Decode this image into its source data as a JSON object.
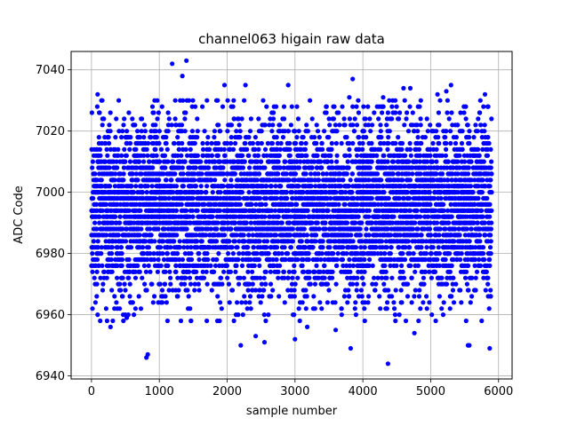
{
  "chart_data": {
    "type": "scatter",
    "title": "channel063 higain raw data",
    "xlabel": "sample number",
    "ylabel": "ADC Code",
    "xlim": [
      -300,
      6200
    ],
    "ylim": [
      6939,
      7046
    ],
    "x_ticks": [
      0,
      1000,
      2000,
      3000,
      4000,
      5000,
      6000
    ],
    "y_ticks": [
      6940,
      6960,
      6980,
      7000,
      7020,
      7040
    ],
    "grid": true,
    "marker_color": "#0000ff",
    "series": [
      {
        "points_summary": {
          "count": 5900,
          "x_range": [
            0,
            5900
          ],
          "center": 6995,
          "band_low": 6965,
          "band_high": 7025
        },
        "outliers": [
          [
            1190,
            7042
          ],
          [
            1400,
            7043
          ],
          [
            1340,
            7038
          ],
          [
            3850,
            7037
          ],
          [
            2900,
            7035
          ],
          [
            2270,
            7035
          ],
          [
            5300,
            7035
          ],
          [
            5230,
            7033
          ],
          [
            4300,
            7031
          ],
          [
            3800,
            7031
          ],
          [
            5800,
            7032
          ],
          [
            5100,
            7032
          ],
          [
            4600,
            7034
          ],
          [
            4700,
            7034
          ],
          [
            1960,
            7035
          ],
          [
            90,
            7032
          ],
          [
            830,
            6947
          ],
          [
            810,
            6946
          ],
          [
            4370,
            6944
          ],
          [
            3820,
            6949
          ],
          [
            5870,
            6949
          ],
          [
            2550,
            6951
          ],
          [
            2200,
            6950
          ],
          [
            2420,
            6953
          ],
          [
            5550,
            6950
          ],
          [
            5570,
            6950
          ],
          [
            4760,
            6954
          ],
          [
            3000,
            6952
          ],
          [
            1120,
            6958
          ],
          [
            230,
            6958
          ],
          [
            280,
            6956
          ],
          [
            520,
            6959
          ],
          [
            1700,
            6958
          ],
          [
            2350,
            6962
          ],
          [
            3600,
            6955
          ],
          [
            3180,
            6956
          ]
        ]
      }
    ]
  }
}
